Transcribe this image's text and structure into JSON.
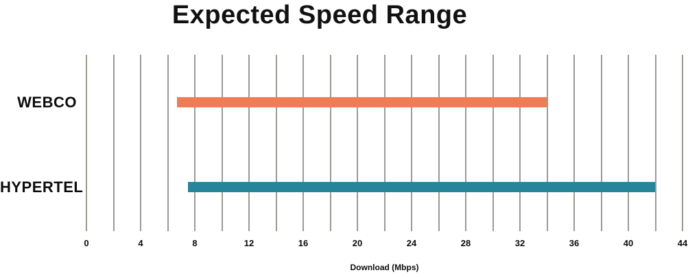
{
  "chart_data": {
    "type": "bar",
    "orientation": "horizontal",
    "title": "Expected Speed Range",
    "xlabel": "Download (Mbps)",
    "xlim": [
      0,
      44
    ],
    "x_tick_step": 4,
    "gridline_step": 2,
    "grid": true,
    "legend": false,
    "categories": [
      "WEBCO",
      "HYPERTEL"
    ],
    "bars": [
      {
        "category": "WEBCO",
        "range_start": 6.7,
        "range_end": 34,
        "color": "#EF7C55"
      },
      {
        "category": "HYPERTEL",
        "range_start": 7.5,
        "range_end": 42,
        "color": "#27859B"
      }
    ],
    "colors": {
      "gridline": "#9D9993",
      "text": "#0c0c0c",
      "title": "#111111",
      "background": "#ffffff"
    }
  }
}
